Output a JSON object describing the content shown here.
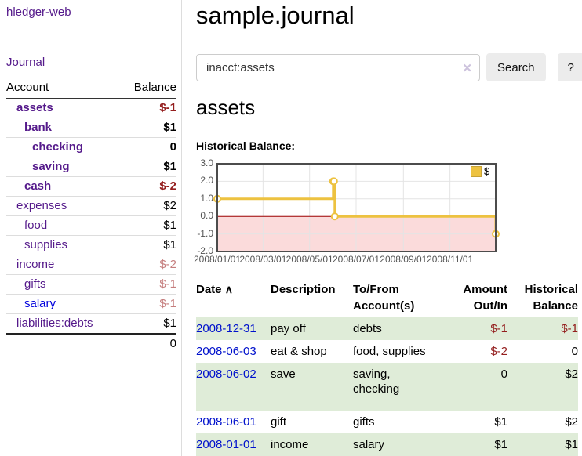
{
  "sidebar": {
    "app_title": "hledger-web",
    "nav": {
      "journal": "Journal"
    },
    "accounts": {
      "headers": {
        "account": "Account",
        "balance": "Balance"
      },
      "rows": [
        {
          "name": "assets",
          "balance": "$-1",
          "level": 1,
          "bold": true,
          "unvisited": false
        },
        {
          "name": "bank",
          "balance": "$1",
          "level": 2,
          "bold": true,
          "unvisited": false
        },
        {
          "name": "checking",
          "balance": "0",
          "level": 3,
          "bold": true,
          "unvisited": false
        },
        {
          "name": "saving",
          "balance": "$1",
          "level": 3,
          "bold": true,
          "unvisited": false
        },
        {
          "name": "cash",
          "balance": "$-2",
          "level": 2,
          "bold": true,
          "unvisited": false
        },
        {
          "name": "expenses",
          "balance": "$2",
          "level": 1,
          "bold": false,
          "unvisited": false
        },
        {
          "name": "food",
          "balance": "$1",
          "level": 2,
          "bold": false,
          "unvisited": false
        },
        {
          "name": "supplies",
          "balance": "$1",
          "level": 2,
          "bold": false,
          "unvisited": false
        },
        {
          "name": "income",
          "balance": "$-2",
          "level": 1,
          "bold": false,
          "unvisited": false
        },
        {
          "name": "gifts",
          "balance": "$-1",
          "level": 2,
          "bold": false,
          "unvisited": false
        },
        {
          "name": "salary",
          "balance": "$-1",
          "level": 2,
          "bold": false,
          "unvisited": true
        },
        {
          "name": "liabilities:debts",
          "balance": "$1",
          "level": 1,
          "bold": false,
          "unvisited": false
        }
      ],
      "total": "0"
    }
  },
  "main": {
    "title": "sample.journal",
    "search": {
      "query": "inacct:assets",
      "clear_icon": "✕",
      "search_button": "Search",
      "help_button": "?"
    },
    "account_heading": "assets",
    "chart_label": "Historical Balance:"
  },
  "chart_data": {
    "type": "line",
    "step": true,
    "title": "Historical Balance",
    "series": [
      {
        "name": "$",
        "color": "#edc240",
        "points": [
          [
            "2008/01/01",
            1
          ],
          [
            "2008/06/01",
            2
          ],
          [
            "2008/06/02",
            2
          ],
          [
            "2008/06/03",
            0
          ],
          [
            "2008/12/31",
            -1
          ]
        ]
      }
    ],
    "x_range": [
      "2008/01/01",
      "2008/12/31"
    ],
    "ylim": [
      -2,
      3
    ],
    "y_ticks": [
      "3.0",
      "2.0",
      "1.0",
      "0.0",
      "-1.0",
      "-2.0"
    ],
    "x_ticks": [
      "2008/01/01",
      "2008/03/01",
      "2008/05/01",
      "2008/07/01",
      "2008/09/01",
      "2008/11/01"
    ],
    "legend": {
      "label": "$",
      "position": "top-right"
    },
    "grid": true,
    "colors": {
      "grid": "#e4e4e4",
      "border": "#4c4c4c",
      "tick_text": "#545454",
      "negative_region": "#fbdbdb",
      "zero_line": "#a00000"
    }
  },
  "register": {
    "headers": {
      "date": "Date",
      "sort_icon": "∧",
      "description": "Description",
      "accounts": "To/From\nAccount(s)",
      "amount": "Amount\nOut/In",
      "balance": "Historical\nBalance"
    },
    "rows": [
      {
        "date": "2008-12-31",
        "description": "pay off",
        "accounts": "debts",
        "amount": "$-1",
        "balance": "$-1",
        "tall": false
      },
      {
        "date": "2008-06-03",
        "description": "eat & shop",
        "accounts": "food, supplies",
        "amount": "$-2",
        "balance": "0",
        "tall": false
      },
      {
        "date": "2008-06-02",
        "description": "save",
        "accounts": "saving,\nchecking",
        "amount": "0",
        "balance": "$2",
        "tall": true
      },
      {
        "date": "2008-06-01",
        "description": "gift",
        "accounts": "gifts",
        "amount": "$1",
        "balance": "$2",
        "tall": false
      },
      {
        "date": "2008-01-01",
        "description": "income",
        "accounts": "salary",
        "amount": "$1",
        "balance": "$1",
        "tall": false
      }
    ]
  }
}
